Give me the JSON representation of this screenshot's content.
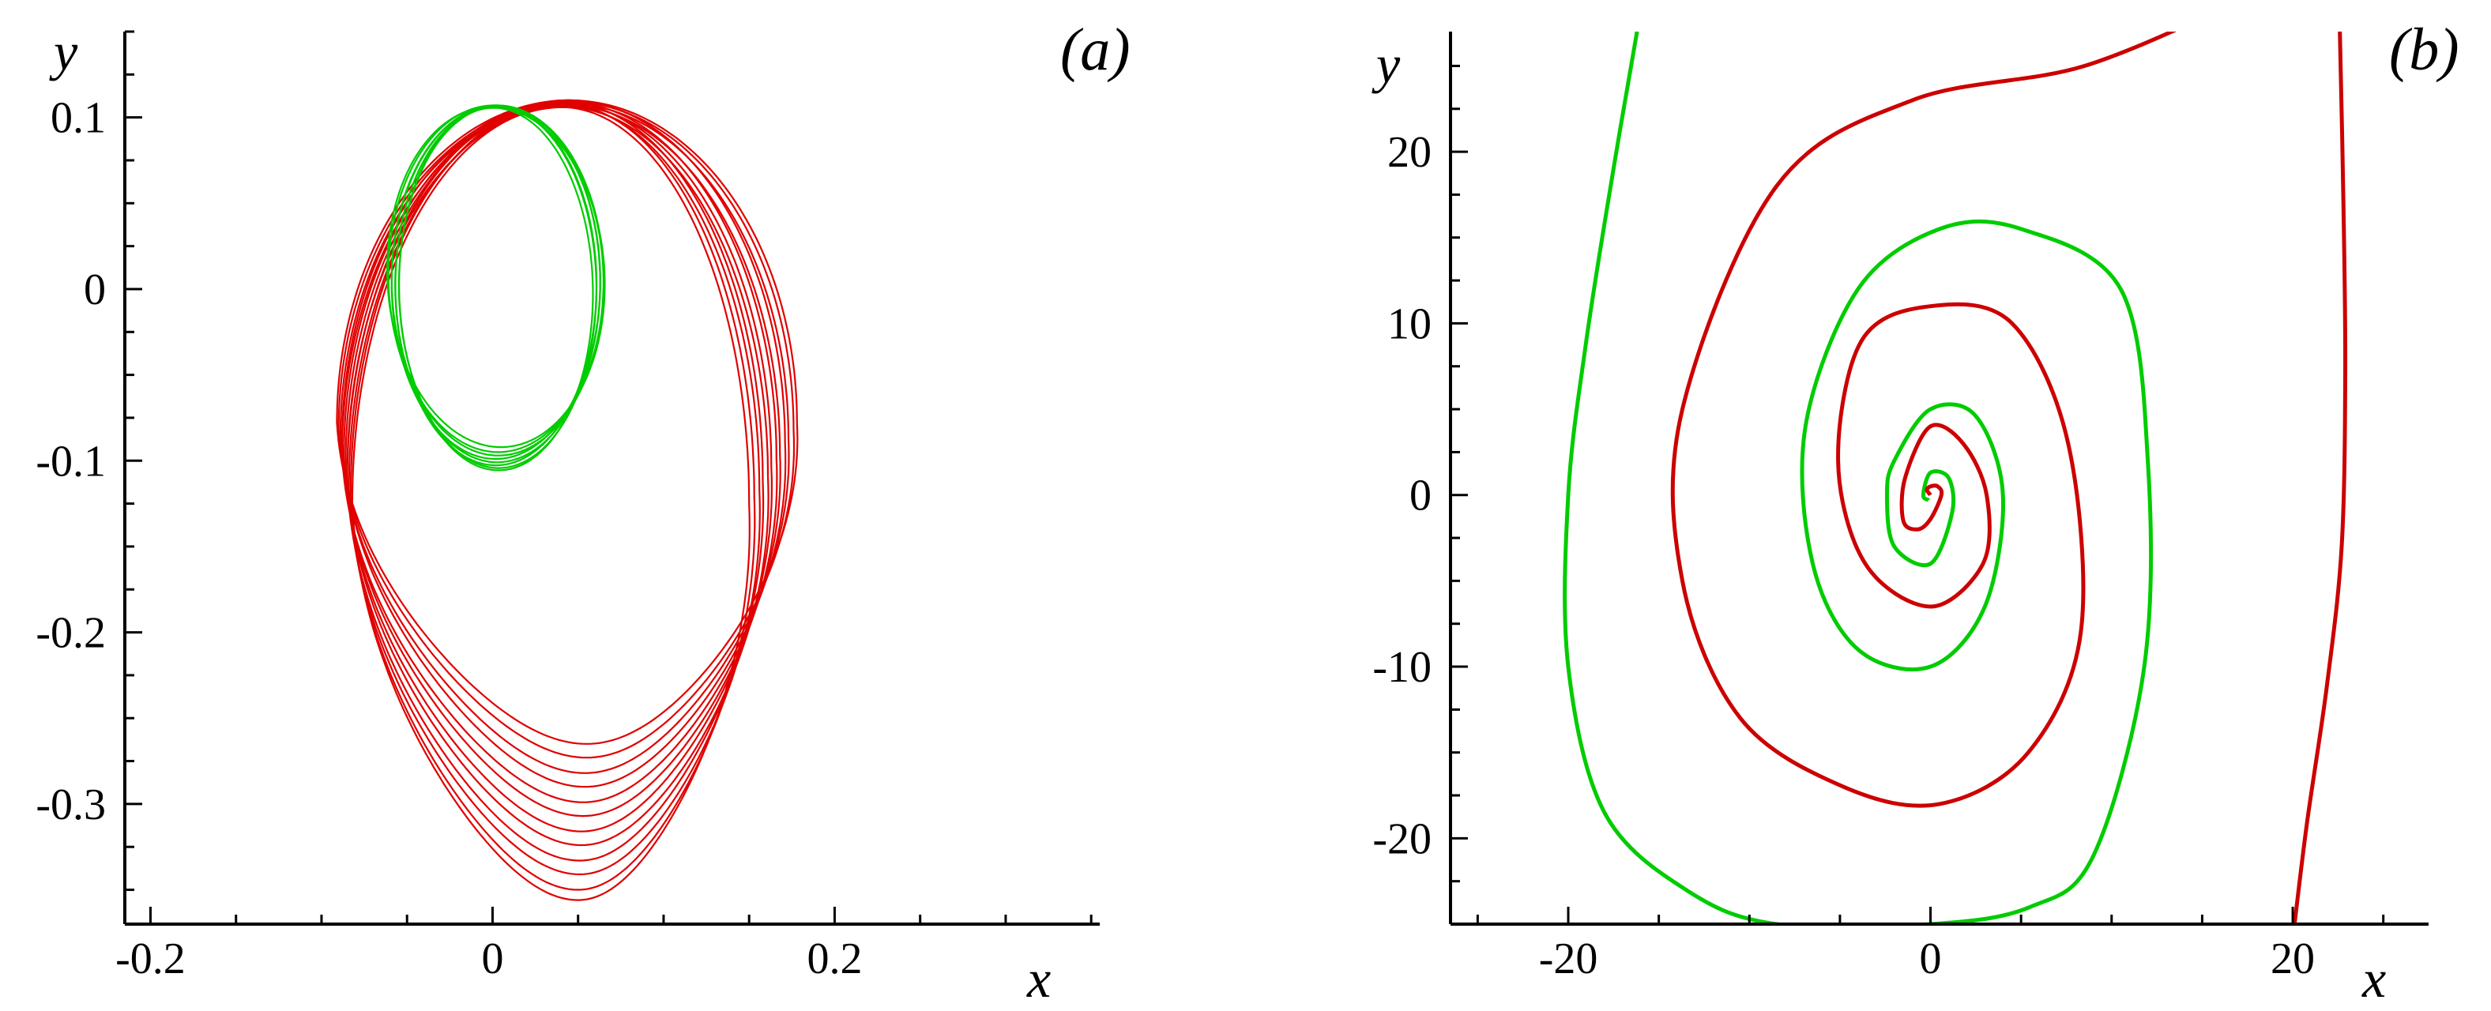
{
  "chart_data": [
    {
      "type": "line",
      "panel_label": "(a)",
      "xlabel": "x",
      "ylabel": "y",
      "xlim": [
        -0.215,
        0.355
      ],
      "ylim": [
        -0.37,
        0.15
      ],
      "xticks": [
        -0.2,
        0,
        0.2
      ],
      "xtick_labels": [
        "-0.2",
        "0",
        "0.2"
      ],
      "yticks": [
        -0.3,
        -0.2,
        -0.1,
        0,
        0.1
      ],
      "ytick_labels": [
        "-0.3",
        "-0.2",
        "-0.1",
        "0",
        "0.1"
      ],
      "grid": false,
      "legend": "none",
      "series": [
        {
          "color": "#e00000",
          "shape": "bundle of ~12 closed orbits (quasi-periodic)",
          "center_x": [
            0.045,
            0.045,
            0.044,
            0.044,
            0.043,
            0.043,
            0.042,
            0.042,
            0.041,
            0.041,
            0.04,
            0.04
          ],
          "top_y": [
            0.11,
            0.109,
            0.108,
            0.11,
            0.107,
            0.109,
            0.108,
            0.106,
            0.109,
            0.107,
            0.108,
            0.106
          ],
          "bottom_y": [
            -0.265,
            -0.273,
            -0.282,
            -0.29,
            -0.299,
            -0.307,
            -0.316,
            -0.324,
            -0.333,
            -0.341,
            -0.35,
            -0.356
          ],
          "left_x": [
            -0.091,
            -0.09,
            -0.089,
            -0.088,
            -0.088,
            -0.087,
            -0.086,
            -0.085,
            -0.085,
            -0.084,
            -0.083,
            -0.082
          ],
          "right_x": [
            0.178,
            0.176,
            0.173,
            0.171,
            0.168,
            0.166,
            0.163,
            0.161,
            0.158,
            0.156,
            0.153,
            0.15
          ]
        },
        {
          "color": "#00cc00",
          "shape": "bundle of ~8 closed orbits (quasi-periodic)",
          "center_x": [
            0.002,
            0.002,
            0.003,
            0.002,
            0.003,
            0.002,
            0.003,
            0.002
          ],
          "center_y": [
            0.007,
            0.006,
            0.005,
            0.004,
            0.003,
            0.002,
            0.001,
            0.0
          ],
          "rx": [
            0.064,
            0.063,
            0.062,
            0.061,
            0.06,
            0.059,
            0.058,
            0.057
          ],
          "ry": [
            0.099,
            0.101,
            0.102,
            0.103,
            0.104,
            0.105,
            0.106,
            0.107
          ],
          "tilt_deg": [
            -10,
            -6,
            -2,
            2,
            6,
            10,
            14,
            18
          ]
        }
      ]
    },
    {
      "type": "line",
      "panel_label": "(b)",
      "xlabel": "x",
      "ylabel": "y",
      "xlim": [
        -26.5,
        27.5
      ],
      "ylim": [
        -25,
        27
      ],
      "xticks": [
        -20,
        0,
        20
      ],
      "xtick_labels": [
        "-20",
        "0",
        "20"
      ],
      "yticks": [
        -20,
        -10,
        0,
        10,
        20
      ],
      "ytick_labels": [
        "-20",
        "-10",
        "0",
        "10",
        "20"
      ],
      "grid": false,
      "legend": "none",
      "series": [
        {
          "color": "#00cc00",
          "shape": "spiral toward origin",
          "x": [
            -16.2,
            -17.5,
            -19.0,
            -20.0,
            -20.0,
            -18.0,
            -13.5,
            -8.5,
            0.0,
            5.5,
            9.0,
            11.8,
            12.0,
            10.5,
            5.0,
            0.5,
            -4.0,
            -6.9,
            -6.5,
            -4.0,
            0.0,
            3.0,
            4.0,
            2.5,
            0.0,
            -2.0,
            -2.4,
            -2.0,
            0.0,
            1.2,
            1.0,
            0.0,
            -0.4,
            -0.1
          ],
          "y": [
            27.0,
            19.0,
            9.0,
            0.0,
            -10.0,
            -18.5,
            -23.0,
            -25.0,
            -25.0,
            -24.0,
            -21.0,
            -10.0,
            2.0,
            12.0,
            15.5,
            15.5,
            12.0,
            4.0,
            -4.0,
            -9.0,
            -10.0,
            -6.5,
            0.0,
            4.6,
            5.0,
            2.0,
            0.0,
            -3.0,
            -4.0,
            -1.0,
            1.0,
            1.3,
            0.0,
            -0.3
          ]
        },
        {
          "color": "#cc0000",
          "shape": "spiral toward origin",
          "x": [
            22.6,
            22.8,
            22.9,
            22.7,
            21.9,
            20.8,
            20.1,
            17.5,
            8.5,
            -1.0,
            -8.5,
            -13.7,
            -13.7,
            -10.5,
            -4.8,
            0.5,
            5.4,
            8.3,
            7.6,
            4.5,
            0.0,
            -3.8,
            -5.1,
            -3.6,
            0.0,
            2.9,
            3.1,
            1.8,
            0.0,
            -1.4,
            -1.5,
            -0.7,
            0.0,
            0.6,
            0.4,
            0.0,
            -0.2,
            0.0
          ],
          "y": [
            27.0,
            17.0,
            7.0,
            -3.0,
            -11.0,
            -19.0,
            -25.0,
            29.0,
            25.0,
            23.0,
            18.0,
            5.0,
            -5.0,
            -13.0,
            -17.0,
            -18.0,
            -15.0,
            -8.0,
            3.0,
            10.0,
            11.0,
            9.0,
            2.0,
            -4.0,
            -6.5,
            -4.0,
            0.0,
            3.0,
            4.0,
            1.0,
            -1.5,
            -2.0,
            -1.4,
            0.0,
            0.5,
            0.5,
            0.3,
            0.0
          ]
        }
      ]
    }
  ]
}
